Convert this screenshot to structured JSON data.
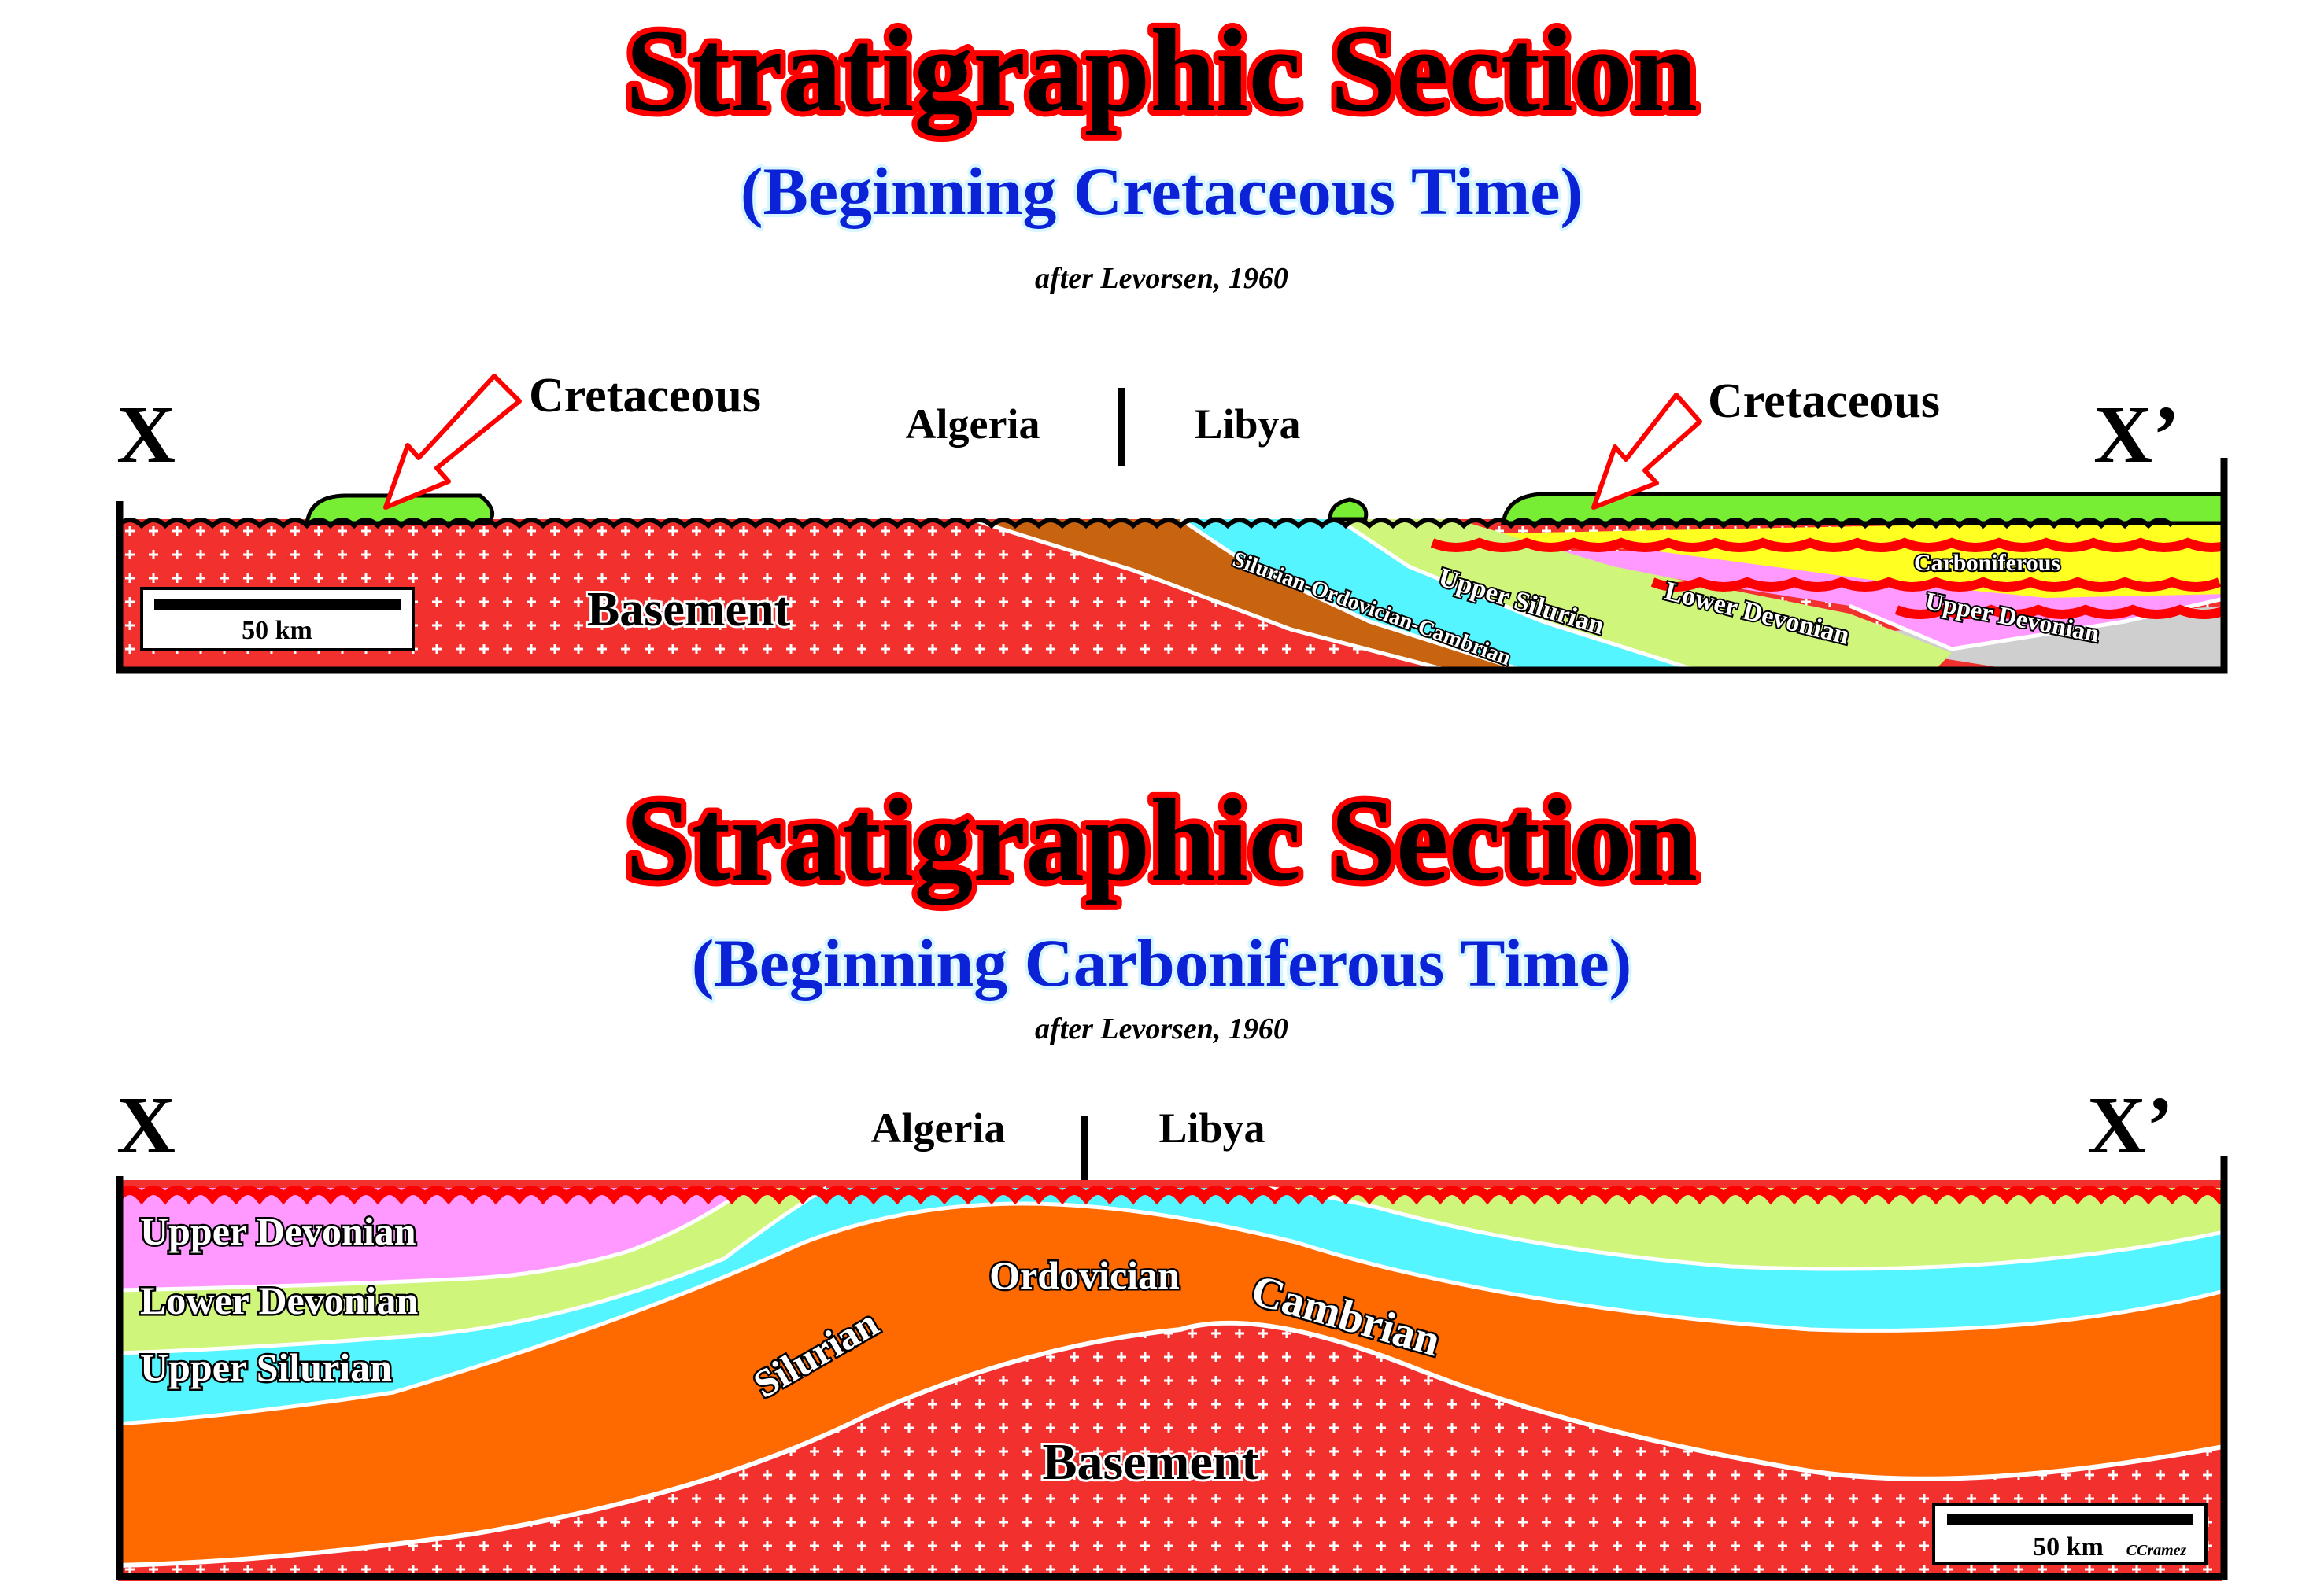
{
  "top_section": {
    "title": "Stratigraphic Section",
    "subtitle": "(Beginning Cretaceous Time)",
    "credit": "after Levorsen, 1960",
    "end_left": "X",
    "end_right": "X’",
    "country_left": "Algeria",
    "country_right": "Libya",
    "callout_left": "Cretaceous",
    "callout_right": "Cretaceous",
    "scale_label": "50 km",
    "layers": {
      "basement": "Basement",
      "silurian_ordovician_cambrian": "Silurian-Ordovician-Cambrian",
      "upper_silurian": "Upper Silurian",
      "lower_devonian": "Lower Devonian",
      "upper_devonian": "Upper Devonian",
      "carboniferous": "Carboniferous"
    }
  },
  "bottom_section": {
    "title": "Stratigraphic Section",
    "subtitle": "(Beginning Carboniferous Time)",
    "credit": "after Levorsen, 1960",
    "end_left": "X",
    "end_right": "X’",
    "country_left": "Algeria",
    "country_right": "Libya",
    "scale_label": "50 km",
    "signature": "CCramez",
    "layers": {
      "upper_devonian": "Upper Devonian",
      "lower_devonian": "Lower Devonian",
      "upper_silurian": "Upper Silurian",
      "silurian": "Silurian",
      "ordovician": "Ordovician",
      "cambrian": "Cambrian",
      "basement": "Basement"
    }
  },
  "colors": {
    "basement": "#f2302e",
    "s_o_c": "#c8640f",
    "upper_silurian": "#55f5ff",
    "lower_devonian": "#cff57a",
    "upper_devonian": "#ff99ff",
    "carboniferous": "#ffff22",
    "cretaceous": "#77ee33",
    "orange_body": "#ff6a00",
    "grey": "#cfcfcf",
    "title_red": "#ff0000",
    "subtitle_blue": "#0b22d6"
  }
}
